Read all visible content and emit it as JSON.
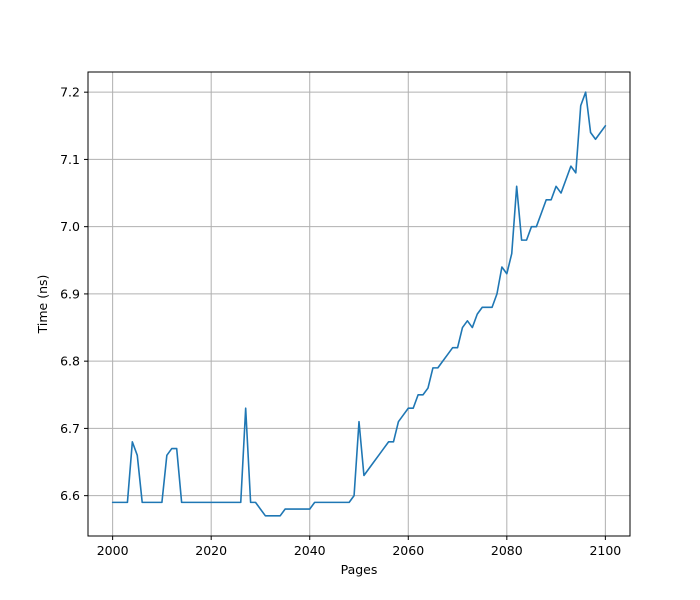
{
  "chart_data": {
    "type": "line",
    "title": "",
    "xlabel": "Pages",
    "ylabel": "Time (ns)",
    "xlim": [
      1995,
      2105
    ],
    "ylim": [
      6.54,
      7.23
    ],
    "xticks": [
      2000,
      2020,
      2040,
      2060,
      2080,
      2100
    ],
    "yticks": [
      6.6,
      6.7,
      6.8,
      6.9,
      7.0,
      7.1,
      7.2
    ],
    "xtick_labels": [
      "2000",
      "2020",
      "2040",
      "2060",
      "2080",
      "2100"
    ],
    "ytick_labels": [
      "6.6",
      "6.7",
      "6.8",
      "6.9",
      "7.0",
      "7.1",
      "7.2"
    ],
    "grid": true,
    "line_color": "#1f77b4",
    "series": [
      {
        "x": [
          2000,
          2001,
          2002,
          2003,
          2004,
          2005,
          2006,
          2007,
          2008,
          2009,
          2010,
          2011,
          2012,
          2013,
          2014,
          2015,
          2016,
          2017,
          2018,
          2019,
          2020,
          2021,
          2022,
          2023,
          2024,
          2025,
          2026,
          2027,
          2028,
          2029,
          2030,
          2031,
          2032,
          2033,
          2034,
          2035,
          2036,
          2037,
          2038,
          2039,
          2040,
          2041,
          2042,
          2043,
          2044,
          2045,
          2046,
          2047,
          2048,
          2049,
          2050,
          2051,
          2052,
          2053,
          2054,
          2055,
          2056,
          2057,
          2058,
          2059,
          2060,
          2061,
          2062,
          2063,
          2064,
          2065,
          2066,
          2067,
          2068,
          2069,
          2070,
          2071,
          2072,
          2073,
          2074,
          2075,
          2076,
          2077,
          2078,
          2079,
          2080,
          2081,
          2082,
          2083,
          2084,
          2085,
          2086,
          2087,
          2088,
          2089,
          2090,
          2091,
          2092,
          2093,
          2094,
          2095,
          2096,
          2097,
          2098,
          2099,
          2100
        ],
        "y": [
          6.59,
          6.59,
          6.59,
          6.59,
          6.68,
          6.66,
          6.59,
          6.59,
          6.59,
          6.59,
          6.59,
          6.66,
          6.67,
          6.67,
          6.59,
          6.59,
          6.59,
          6.59,
          6.59,
          6.59,
          6.59,
          6.59,
          6.59,
          6.59,
          6.59,
          6.59,
          6.59,
          6.73,
          6.59,
          6.59,
          6.58,
          6.57,
          6.57,
          6.57,
          6.57,
          6.58,
          6.58,
          6.58,
          6.58,
          6.58,
          6.58,
          6.59,
          6.59,
          6.59,
          6.59,
          6.59,
          6.59,
          6.59,
          6.59,
          6.6,
          6.71,
          6.63,
          6.64,
          6.65,
          6.66,
          6.67,
          6.68,
          6.68,
          6.71,
          6.72,
          6.73,
          6.73,
          6.75,
          6.75,
          6.76,
          6.79,
          6.79,
          6.8,
          6.81,
          6.82,
          6.82,
          6.85,
          6.86,
          6.85,
          6.87,
          6.88,
          6.88,
          6.88,
          6.9,
          6.94,
          6.93,
          6.96,
          7.06,
          6.98,
          6.98,
          7.0,
          7.0,
          7.02,
          7.04,
          7.04,
          7.06,
          7.05,
          7.07,
          7.09,
          7.08,
          7.18,
          7.2,
          7.14,
          7.13,
          7.14,
          7.15
        ]
      }
    ]
  }
}
